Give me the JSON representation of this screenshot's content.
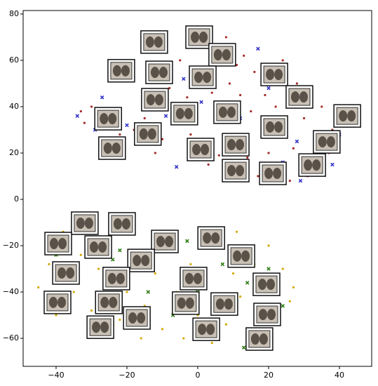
{
  "chart_data": {
    "type": "scatter",
    "xlim": [
      -49.3,
      49.1
    ],
    "ylim": [
      -72.1,
      81.5
    ],
    "xticks": [
      {
        "value": -40,
        "label": "−40"
      },
      {
        "value": -20,
        "label": "−20"
      },
      0,
      20,
      40
    ],
    "yticks": [
      {
        "value": -60,
        "label": "−60"
      },
      {
        "value": -40,
        "label": "−40"
      },
      {
        "value": -20,
        "label": "−20"
      },
      0,
      20,
      40,
      60,
      80
    ],
    "series": [
      {
        "color": "#a52a2a",
        "marker": "dot",
        "x": [
          -33,
          -32,
          -30,
          -28,
          -22,
          -18,
          -15,
          -10,
          -8,
          -5,
          -3,
          -2,
          0,
          2,
          4,
          5,
          6,
          8,
          9,
          10,
          12,
          13,
          14,
          15,
          16,
          18,
          19,
          20,
          22,
          24,
          25,
          26,
          27,
          28,
          30,
          31,
          33,
          35,
          37,
          38,
          -12,
          3,
          -6,
          17,
          11
        ],
        "values": [
          38,
          33,
          40,
          36,
          28,
          30,
          35,
          26,
          48,
          60,
          44,
          28,
          66,
          56,
          46,
          34,
          19,
          70,
          50,
          28,
          45,
          62,
          18,
          38,
          55,
          27,
          45,
          20,
          40,
          60,
          32,
          8,
          22,
          50,
          35,
          10,
          28,
          40,
          20,
          30,
          20,
          15,
          40,
          10,
          58
        ]
      },
      {
        "color": "#3333cc",
        "marker": "cross",
        "x": [
          -34,
          -29,
          -27,
          -20,
          -6,
          -4,
          1,
          6,
          12,
          17,
          20,
          24,
          28,
          31,
          35,
          38,
          40,
          29,
          8,
          -9
        ],
        "values": [
          36,
          30,
          44,
          32,
          14,
          52,
          42,
          66,
          35,
          65,
          48,
          16,
          25,
          40,
          23,
          15,
          28,
          8,
          22,
          36
        ]
      },
      {
        "color": "#d4a900",
        "marker": "dot",
        "x": [
          -45,
          -42,
          -40,
          -38,
          -35,
          -33,
          -30,
          -28,
          -25,
          -22,
          -20,
          -18,
          -15,
          -12,
          -10,
          -8,
          -6,
          -4,
          -2,
          0,
          2,
          4,
          6,
          8,
          10,
          12,
          14,
          16,
          18,
          20,
          22,
          24,
          26,
          27,
          -16,
          -26,
          11,
          -36,
          -14,
          5
        ],
        "values": [
          -38,
          -28,
          -50,
          -14,
          -40,
          -24,
          -48,
          -30,
          -18,
          -52,
          -40,
          -14,
          -46,
          -32,
          -56,
          -22,
          -40,
          -60,
          -28,
          -50,
          -36,
          -62,
          -20,
          -54,
          -32,
          -42,
          -62,
          -28,
          -52,
          -20,
          -40,
          -30,
          -44,
          -38,
          -60,
          -58,
          -14,
          -20,
          -22,
          -46
        ]
      },
      {
        "color": "#2e7d12",
        "marker": "cross",
        "x": [
          -40,
          -34,
          -30,
          -26,
          -22,
          -19,
          -14,
          -11,
          -7,
          -3,
          0,
          3,
          7,
          9,
          14,
          17,
          20,
          24,
          13,
          -24
        ],
        "values": [
          -24,
          -32,
          -12,
          -42,
          -22,
          -48,
          -40,
          -14,
          -50,
          -18,
          -40,
          -58,
          -28,
          -48,
          -36,
          -56,
          -30,
          -46,
          -64,
          -26
        ]
      },
      {
        "color": "#5a5248",
        "marker": "image",
        "x": [
          -12.3,
          0.4,
          6.9,
          -21.6,
          -10.9,
          1.4,
          21.6,
          28.7,
          -12.1,
          -3.8,
          8.3,
          42.2,
          -25.3,
          -14.1,
          21.6,
          36.4,
          -24.2,
          0.8,
          10.7,
          32.3,
          10.7,
          21.2,
          -31.9,
          -21.4,
          -39.4,
          -28.1,
          -9.3,
          3.8,
          -16,
          12.3,
          -37.2,
          -23,
          -1.2,
          19.4,
          -39.6,
          -25.1,
          -3.4,
          7.5,
          -17.2,
          19.6,
          -27.5,
          2.4,
          17.4
        ],
        "values": [
          67.9,
          70,
          62.4,
          55.5,
          54.8,
          52.7,
          53.9,
          44.2,
          43,
          37,
          37.6,
          36,
          34.8,
          28.2,
          31.2,
          24.8,
          22.1,
          21.5,
          23.6,
          14.8,
          12.4,
          11.2,
          -10.3,
          -10.6,
          -19.1,
          -20.6,
          -18.2,
          -16.7,
          -26.4,
          -24.5,
          -31.8,
          -34.2,
          -34.2,
          -36.7,
          -44.5,
          -44.5,
          -44.8,
          -45.2,
          -51.2,
          -49.7,
          -55.2,
          -56.1,
          -60.3
        ]
      }
    ]
  }
}
